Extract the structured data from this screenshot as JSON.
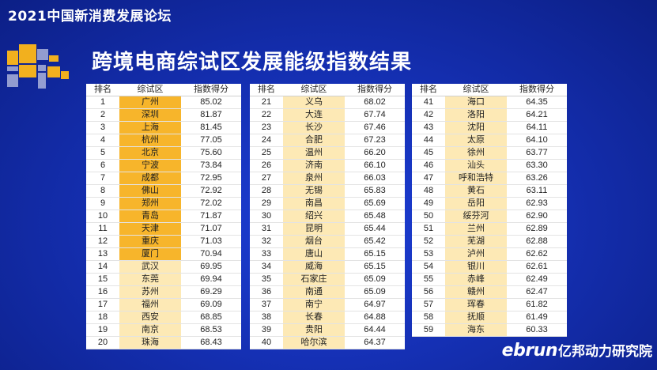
{
  "header": {
    "forum_title": "2021中国新消费发展论坛"
  },
  "slide": {
    "title": "跨境电商综试区发展能级指数结果"
  },
  "table_headers": {
    "rank": "排名",
    "zone": "综试区",
    "score": "指数得分"
  },
  "brand": {
    "english": "ebrun",
    "chinese": "亿邦动力研究院"
  },
  "colors": {
    "highlight_top": "#f7b52b",
    "highlight_other": "#fde9b5",
    "background": "#1530b4"
  },
  "rows": [
    {
      "rank": "1",
      "zone": "广州",
      "score": "85.02"
    },
    {
      "rank": "2",
      "zone": "深圳",
      "score": "81.87"
    },
    {
      "rank": "3",
      "zone": "上海",
      "score": "81.45"
    },
    {
      "rank": "4",
      "zone": "杭州",
      "score": "77.05"
    },
    {
      "rank": "5",
      "zone": "北京",
      "score": "75.60"
    },
    {
      "rank": "6",
      "zone": "宁波",
      "score": "73.84"
    },
    {
      "rank": "7",
      "zone": "成都",
      "score": "72.95"
    },
    {
      "rank": "8",
      "zone": "佛山",
      "score": "72.92"
    },
    {
      "rank": "9",
      "zone": "郑州",
      "score": "72.02"
    },
    {
      "rank": "10",
      "zone": "青岛",
      "score": "71.87"
    },
    {
      "rank": "11",
      "zone": "天津",
      "score": "71.07"
    },
    {
      "rank": "12",
      "zone": "重庆",
      "score": "71.03"
    },
    {
      "rank": "13",
      "zone": "厦门",
      "score": "70.94"
    },
    {
      "rank": "14",
      "zone": "武汉",
      "score": "69.95"
    },
    {
      "rank": "15",
      "zone": "东莞",
      "score": "69.94"
    },
    {
      "rank": "16",
      "zone": "苏州",
      "score": "69.29"
    },
    {
      "rank": "17",
      "zone": "福州",
      "score": "69.09"
    },
    {
      "rank": "18",
      "zone": "西安",
      "score": "68.85"
    },
    {
      "rank": "19",
      "zone": "南京",
      "score": "68.53"
    },
    {
      "rank": "20",
      "zone": "珠海",
      "score": "68.43"
    },
    {
      "rank": "21",
      "zone": "义乌",
      "score": "68.02"
    },
    {
      "rank": "22",
      "zone": "大连",
      "score": "67.74"
    },
    {
      "rank": "23",
      "zone": "长沙",
      "score": "67.46"
    },
    {
      "rank": "24",
      "zone": "合肥",
      "score": "67.23"
    },
    {
      "rank": "25",
      "zone": "温州",
      "score": "66.20"
    },
    {
      "rank": "26",
      "zone": "济南",
      "score": "66.10"
    },
    {
      "rank": "27",
      "zone": "泉州",
      "score": "66.03"
    },
    {
      "rank": "28",
      "zone": "无锡",
      "score": "65.83"
    },
    {
      "rank": "29",
      "zone": "南昌",
      "score": "65.69"
    },
    {
      "rank": "30",
      "zone": "绍兴",
      "score": "65.48"
    },
    {
      "rank": "31",
      "zone": "昆明",
      "score": "65.44"
    },
    {
      "rank": "32",
      "zone": "烟台",
      "score": "65.42"
    },
    {
      "rank": "33",
      "zone": "唐山",
      "score": "65.15"
    },
    {
      "rank": "34",
      "zone": "威海",
      "score": "65.15"
    },
    {
      "rank": "35",
      "zone": "石家庄",
      "score": "65.09"
    },
    {
      "rank": "36",
      "zone": "南通",
      "score": "65.09"
    },
    {
      "rank": "37",
      "zone": "南宁",
      "score": "64.97"
    },
    {
      "rank": "38",
      "zone": "长春",
      "score": "64.88"
    },
    {
      "rank": "39",
      "zone": "贵阳",
      "score": "64.44"
    },
    {
      "rank": "40",
      "zone": "哈尔滨",
      "score": "64.37"
    },
    {
      "rank": "41",
      "zone": "海口",
      "score": "64.35"
    },
    {
      "rank": "42",
      "zone": "洛阳",
      "score": "64.21"
    },
    {
      "rank": "43",
      "zone": "沈阳",
      "score": "64.11"
    },
    {
      "rank": "44",
      "zone": "太原",
      "score": "64.10"
    },
    {
      "rank": "45",
      "zone": "徐州",
      "score": "63.77"
    },
    {
      "rank": "46",
      "zone": "汕头",
      "score": "63.30"
    },
    {
      "rank": "47",
      "zone": "呼和浩特",
      "score": "63.26"
    },
    {
      "rank": "48",
      "zone": "黄石",
      "score": "63.11"
    },
    {
      "rank": "49",
      "zone": "岳阳",
      "score": "62.93"
    },
    {
      "rank": "50",
      "zone": "绥芬河",
      "score": "62.90"
    },
    {
      "rank": "51",
      "zone": "兰州",
      "score": "62.89"
    },
    {
      "rank": "52",
      "zone": "芜湖",
      "score": "62.88"
    },
    {
      "rank": "53",
      "zone": "泸州",
      "score": "62.62"
    },
    {
      "rank": "54",
      "zone": "银川",
      "score": "62.61"
    },
    {
      "rank": "55",
      "zone": "赤峰",
      "score": "62.49"
    },
    {
      "rank": "56",
      "zone": "赣州",
      "score": "62.47"
    },
    {
      "rank": "57",
      "zone": "珲春",
      "score": "61.82"
    },
    {
      "rank": "58",
      "zone": "抚顺",
      "score": "61.49"
    },
    {
      "rank": "59",
      "zone": "海东",
      "score": "60.33"
    }
  ]
}
